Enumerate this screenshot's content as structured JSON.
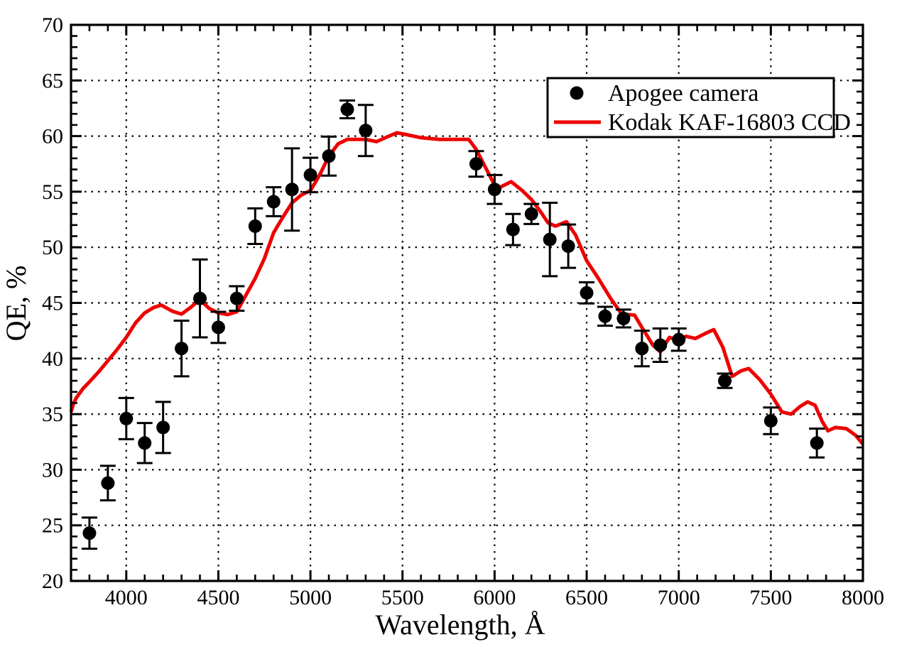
{
  "page": {
    "background": "#ffffff"
  },
  "chart_data": {
    "type": "line",
    "title": "",
    "xlabel": "Wavelength, Å",
    "ylabel": "QE, %",
    "xlim": [
      3700,
      8000
    ],
    "ylim": [
      20,
      70
    ],
    "x_major_ticks": [
      4000,
      4500,
      5000,
      5500,
      6000,
      6500,
      7000,
      7500,
      8000
    ],
    "x_minor_step": 100,
    "y_major_ticks": [
      20,
      25,
      30,
      35,
      40,
      45,
      50,
      55,
      60,
      65,
      70
    ],
    "y_minor_step": 1,
    "grid": {
      "shown": true,
      "style": "dotted",
      "color": "#000000",
      "at": "major-ticks"
    },
    "frame_color": "#000000",
    "legend": {
      "position": "top-right",
      "border_color": "#000000",
      "background": "#ffffff"
    },
    "series": [
      {
        "name": "Apogee camera",
        "type": "scatter-errorbar",
        "marker": "filled-circle",
        "color": "#000000",
        "points": [
          {
            "wl": 3800,
            "qe": 24.3,
            "err": 1.4
          },
          {
            "wl": 3900,
            "qe": 28.8,
            "err": 1.55
          },
          {
            "wl": 4000,
            "qe": 34.6,
            "err": 1.85
          },
          {
            "wl": 4100,
            "qe": 32.4,
            "err": 1.8
          },
          {
            "wl": 4200,
            "qe": 33.8,
            "err": 2.3
          },
          {
            "wl": 4300,
            "qe": 40.9,
            "err": 2.5
          },
          {
            "wl": 4400,
            "qe": 45.4,
            "err": 3.5
          },
          {
            "wl": 4500,
            "qe": 42.8,
            "err": 1.4
          },
          {
            "wl": 4600,
            "qe": 45.4,
            "err": 1.1
          },
          {
            "wl": 4700,
            "qe": 51.9,
            "err": 1.6
          },
          {
            "wl": 4800,
            "qe": 54.1,
            "err": 1.3
          },
          {
            "wl": 4900,
            "qe": 55.2,
            "err": 3.7
          },
          {
            "wl": 5000,
            "qe": 56.5,
            "err": 1.55
          },
          {
            "wl": 5100,
            "qe": 58.2,
            "err": 1.75
          },
          {
            "wl": 5200,
            "qe": 62.4,
            "err": 0.8
          },
          {
            "wl": 5300,
            "qe": 60.5,
            "err": 2.3
          },
          {
            "wl": 5900,
            "qe": 57.5,
            "err": 1.15
          },
          {
            "wl": 6000,
            "qe": 55.2,
            "err": 1.3
          },
          {
            "wl": 6100,
            "qe": 51.6,
            "err": 1.4
          },
          {
            "wl": 6200,
            "qe": 53.0,
            "err": 0.9
          },
          {
            "wl": 6300,
            "qe": 50.7,
            "err": 3.3
          },
          {
            "wl": 6400,
            "qe": 50.1,
            "err": 1.95
          },
          {
            "wl": 6500,
            "qe": 45.9,
            "err": 0.95
          },
          {
            "wl": 6600,
            "qe": 43.8,
            "err": 0.85
          },
          {
            "wl": 6700,
            "qe": 43.6,
            "err": 0.8
          },
          {
            "wl": 6800,
            "qe": 40.9,
            "err": 1.6
          },
          {
            "wl": 6900,
            "qe": 41.2,
            "err": 1.5
          },
          {
            "wl": 7000,
            "qe": 41.7,
            "err": 1.0
          },
          {
            "wl": 7250,
            "qe": 38.0,
            "err": 0.65
          },
          {
            "wl": 7500,
            "qe": 34.4,
            "err": 1.2
          },
          {
            "wl": 7750,
            "qe": 32.4,
            "err": 1.3
          }
        ]
      },
      {
        "name": "Kodak KAF-16803 CCD",
        "type": "line",
        "color": "#ee0000",
        "points": [
          [
            3700,
            35.2
          ],
          [
            3715,
            36.0
          ],
          [
            3730,
            36.5
          ],
          [
            3765,
            37.3
          ],
          [
            3800,
            37.9
          ],
          [
            3850,
            38.8
          ],
          [
            3900,
            39.8
          ],
          [
            3950,
            40.8
          ],
          [
            4000,
            41.9
          ],
          [
            4050,
            43.2
          ],
          [
            4100,
            44.1
          ],
          [
            4150,
            44.6
          ],
          [
            4190,
            44.8
          ],
          [
            4250,
            44.25
          ],
          [
            4300,
            44.0
          ],
          [
            4350,
            44.6
          ],
          [
            4400,
            45.3
          ],
          [
            4450,
            44.5
          ],
          [
            4500,
            44.1
          ],
          [
            4550,
            43.95
          ],
          [
            4600,
            44.2
          ],
          [
            4650,
            45.7
          ],
          [
            4700,
            47.2
          ],
          [
            4750,
            49.0
          ],
          [
            4800,
            51.3
          ],
          [
            4850,
            52.7
          ],
          [
            4900,
            54.0
          ],
          [
            4950,
            54.7
          ],
          [
            5000,
            55.1
          ],
          [
            5050,
            56.5
          ],
          [
            5100,
            58.2
          ],
          [
            5150,
            59.3
          ],
          [
            5200,
            59.7
          ],
          [
            5300,
            59.7
          ],
          [
            5360,
            59.5
          ],
          [
            5420,
            59.95
          ],
          [
            5470,
            60.3
          ],
          [
            5530,
            60.1
          ],
          [
            5600,
            59.85
          ],
          [
            5700,
            59.7
          ],
          [
            5860,
            59.7
          ],
          [
            5900,
            58.8
          ],
          [
            5950,
            57.2
          ],
          [
            6000,
            55.6
          ],
          [
            6030,
            55.4
          ],
          [
            6090,
            55.9
          ],
          [
            6150,
            55.1
          ],
          [
            6200,
            54.3
          ],
          [
            6250,
            53.2
          ],
          [
            6290,
            52.2
          ],
          [
            6330,
            51.9
          ],
          [
            6390,
            52.3
          ],
          [
            6440,
            51.1
          ],
          [
            6500,
            48.8
          ],
          [
            6560,
            47.3
          ],
          [
            6630,
            45.4
          ],
          [
            6690,
            44.0
          ],
          [
            6760,
            43.9
          ],
          [
            6800,
            42.8
          ],
          [
            6860,
            41.2
          ],
          [
            6900,
            40.6
          ],
          [
            6950,
            41.9
          ],
          [
            7000,
            41.6
          ],
          [
            7040,
            42.0
          ],
          [
            7090,
            41.8
          ],
          [
            7150,
            42.3
          ],
          [
            7190,
            42.6
          ],
          [
            7240,
            41.0
          ],
          [
            7290,
            38.4
          ],
          [
            7340,
            38.9
          ],
          [
            7380,
            39.1
          ],
          [
            7440,
            38.1
          ],
          [
            7500,
            36.8
          ],
          [
            7560,
            35.2
          ],
          [
            7610,
            35.0
          ],
          [
            7660,
            35.7
          ],
          [
            7700,
            36.1
          ],
          [
            7740,
            35.8
          ],
          [
            7780,
            34.3
          ],
          [
            7810,
            33.5
          ],
          [
            7850,
            33.8
          ],
          [
            7910,
            33.7
          ],
          [
            7960,
            33.1
          ],
          [
            8000,
            32.3
          ]
        ]
      }
    ]
  }
}
